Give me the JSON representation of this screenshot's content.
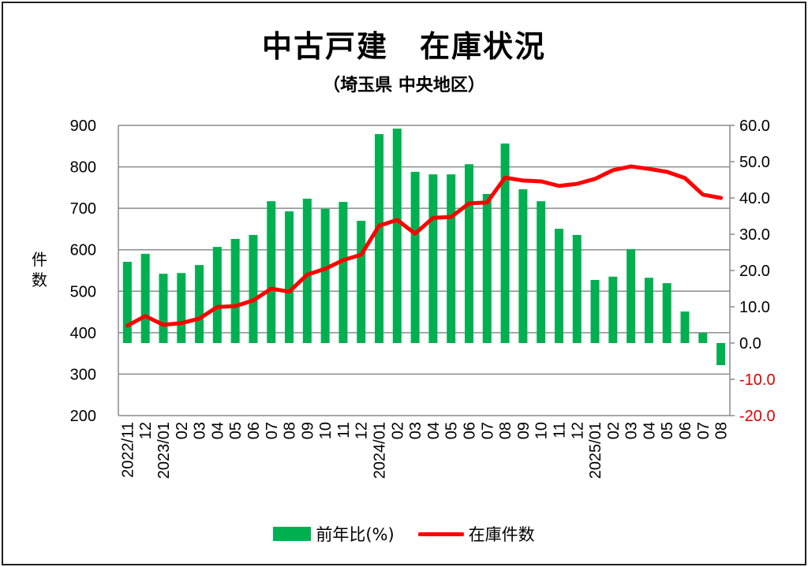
{
  "title": "中古戸建　在庫状況",
  "subtitle": "（埼玉県 中央地区）",
  "chart_data": {
    "type": "bar+line",
    "ylabel": "件数",
    "categories": [
      "2022/11",
      "12",
      "2023/01",
      "02",
      "03",
      "04",
      "05",
      "06",
      "07",
      "08",
      "09",
      "10",
      "11",
      "12",
      "2024/01",
      "02",
      "03",
      "04",
      "05",
      "06",
      "07",
      "08",
      "09",
      "10",
      "11",
      "12",
      "2025/01",
      "02",
      "03",
      "04",
      "05",
      "06",
      "07",
      "08"
    ],
    "series": [
      {
        "name": "前年比(%)",
        "type": "bar",
        "axis": "right",
        "color": "#00b050",
        "values": [
          22.4,
          24.6,
          19.1,
          19.3,
          21.5,
          26.5,
          28.7,
          29.8,
          39.1,
          36.3,
          39.8,
          37.0,
          38.9,
          33.7,
          57.6,
          59.1,
          47.2,
          46.5,
          46.5,
          49.3,
          41.1,
          55.0,
          42.4,
          39.1,
          31.5,
          29.8,
          17.4,
          18.3,
          25.9,
          18.0,
          16.5,
          8.7,
          2.8,
          -6.1
        ]
      },
      {
        "name": "在庫件数",
        "type": "line",
        "axis": "left",
        "color": "#ff0000",
        "values": [
          417,
          440,
          419,
          423,
          434,
          462,
          464,
          478,
          506,
          499,
          540,
          554,
          575,
          588,
          658,
          672,
          639,
          677,
          679,
          712,
          714,
          774,
          767,
          765,
          754,
          759,
          771,
          792,
          801,
          795,
          788,
          773,
          733,
          725
        ]
      }
    ],
    "left_axis": {
      "range": [
        200,
        900
      ],
      "ticks": [
        "200",
        "300",
        "400",
        "500",
        "600",
        "700",
        "800",
        "900"
      ]
    },
    "right_axis": {
      "range": [
        -20,
        60
      ],
      "ticks": [
        "-20.0",
        "-10.0",
        "0.0",
        "10.0",
        "20.0",
        "30.0",
        "40.0",
        "50.0",
        "60.0"
      ],
      "negative_color": "#e00000"
    },
    "grid": true,
    "legend_position": "bottom"
  },
  "legend": {
    "bar_label": "前年比(%)",
    "line_label": "在庫件数"
  }
}
